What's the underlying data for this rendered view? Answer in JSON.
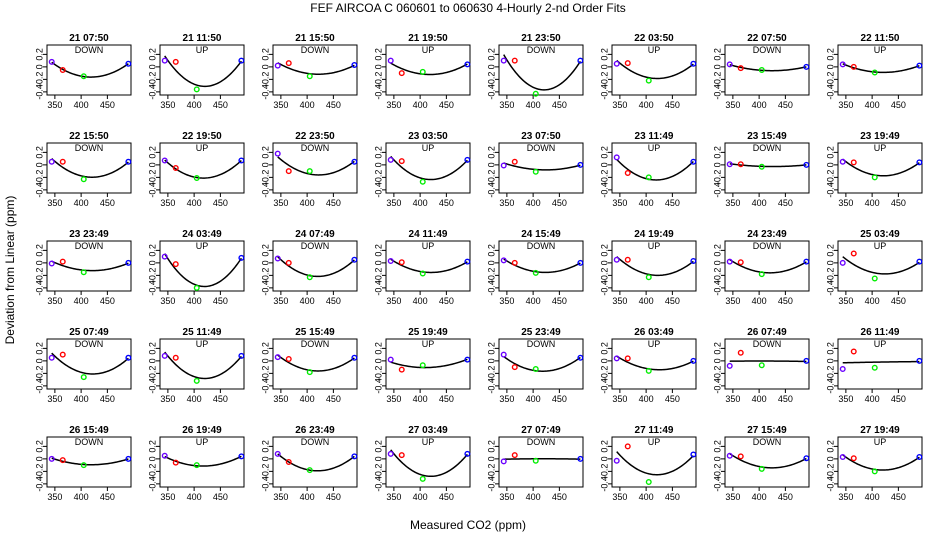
{
  "chart_data": {
    "type": "scatter",
    "title": "FEF   AIRCOA C   060601 to 060630   4-Hourly 2-nd Order Fits",
    "xlabel": "Measured CO2 (ppm)",
    "ylabel": "Deviation from Linear (ppm)",
    "xlim": [
      335,
      495
    ],
    "ylim": [
      -0.45,
      0.35
    ],
    "xticks": [
      350,
      400,
      450
    ],
    "yticks": [
      -0.4,
      -0.2,
      0.0,
      0.2
    ],
    "ytick_labels": [
      "-0.4",
      "-0.2",
      "0",
      "0.2"
    ],
    "standard_x": [
      344,
      365,
      405,
      490
    ],
    "series_colors": [
      "#6a00ff",
      "#ff0000",
      "#00ee00",
      "#0000ff"
    ],
    "panels": [
      {
        "title": "21 07:50",
        "dir": "DOWN",
        "y": [
          0.08,
          -0.05,
          -0.15,
          0.05
        ]
      },
      {
        "title": "21 11:50",
        "dir": "UP",
        "y": [
          0.1,
          0.08,
          -0.36,
          0.1
        ]
      },
      {
        "title": "21 15:50",
        "dir": "DOWN",
        "y": [
          0.02,
          0.06,
          -0.15,
          0.03
        ]
      },
      {
        "title": "21 19:50",
        "dir": "UP",
        "y": [
          0.1,
          -0.1,
          -0.08,
          0.04
        ]
      },
      {
        "title": "21 23:50",
        "dir": "DOWN",
        "y": [
          0.1,
          0.1,
          -0.43,
          0.1
        ]
      },
      {
        "title": "22 03:50",
        "dir": "UP",
        "y": [
          0.05,
          0.06,
          -0.22,
          0.05
        ]
      },
      {
        "title": "22 07:50",
        "dir": "DOWN",
        "y": [
          0.04,
          -0.02,
          -0.05,
          0.0
        ]
      },
      {
        "title": "22 11:50",
        "dir": "UP",
        "y": [
          0.04,
          0.0,
          -0.09,
          0.02
        ]
      },
      {
        "title": "22 15:50",
        "dir": "DOWN",
        "y": [
          0.05,
          0.05,
          -0.23,
          0.05
        ]
      },
      {
        "title": "22 19:50",
        "dir": "UP",
        "y": [
          0.07,
          -0.05,
          -0.21,
          0.07
        ]
      },
      {
        "title": "22 23:50",
        "dir": "DOWN",
        "y": [
          0.18,
          -0.1,
          -0.1,
          0.05
        ]
      },
      {
        "title": "23 03:50",
        "dir": "UP",
        "y": [
          0.08,
          0.06,
          -0.27,
          0.08
        ]
      },
      {
        "title": "23 07:50",
        "dir": "DOWN",
        "y": [
          -0.01,
          0.05,
          -0.11,
          0.0
        ]
      },
      {
        "title": "23 11:49",
        "dir": "UP",
        "y": [
          0.12,
          -0.13,
          -0.2,
          0.05
        ]
      },
      {
        "title": "23 15:49",
        "dir": "DOWN",
        "y": [
          0.01,
          0.01,
          -0.03,
          0.0
        ]
      },
      {
        "title": "23 19:49",
        "dir": "UP",
        "y": [
          0.05,
          0.04,
          -0.2,
          0.04
        ]
      },
      {
        "title": "23 23:49",
        "dir": "DOWN",
        "y": [
          -0.01,
          0.02,
          -0.15,
          0.0
        ]
      },
      {
        "title": "24 03:49",
        "dir": "UP",
        "y": [
          0.1,
          -0.02,
          -0.4,
          0.08
        ]
      },
      {
        "title": "24 07:49",
        "dir": "DOWN",
        "y": [
          0.07,
          0.0,
          -0.23,
          0.05
        ]
      },
      {
        "title": "24 11:49",
        "dir": "UP",
        "y": [
          0.03,
          0.01,
          -0.17,
          0.02
        ]
      },
      {
        "title": "24 15:49",
        "dir": "DOWN",
        "y": [
          0.04,
          0.0,
          -0.16,
          0.0
        ]
      },
      {
        "title": "24 19:49",
        "dir": "UP",
        "y": [
          0.05,
          0.05,
          -0.23,
          0.03
        ]
      },
      {
        "title": "24 23:49",
        "dir": "DOWN",
        "y": [
          0.02,
          0.01,
          -0.18,
          0.02
        ]
      },
      {
        "title": "25 03:49",
        "dir": "UP",
        "y": [
          0.0,
          0.15,
          -0.25,
          0.02
        ]
      },
      {
        "title": "25 07:49",
        "dir": "DOWN",
        "y": [
          0.05,
          0.1,
          -0.26,
          0.05
        ]
      },
      {
        "title": "25 11:49",
        "dir": "UP",
        "y": [
          0.08,
          0.05,
          -0.32,
          0.08
        ]
      },
      {
        "title": "25 15:49",
        "dir": "DOWN",
        "y": [
          0.06,
          0.03,
          -0.18,
          0.05
        ]
      },
      {
        "title": "25 19:49",
        "dir": "UP",
        "y": [
          0.02,
          -0.14,
          -0.07,
          0.02
        ]
      },
      {
        "title": "25 23:49",
        "dir": "DOWN",
        "y": [
          0.1,
          -0.1,
          -0.13,
          0.05
        ]
      },
      {
        "title": "26 03:49",
        "dir": "UP",
        "y": [
          0.04,
          0.04,
          -0.16,
          0.0
        ]
      },
      {
        "title": "26 07:49",
        "dir": "DOWN",
        "y": [
          -0.08,
          0.13,
          -0.07,
          0.0
        ]
      },
      {
        "title": "26 11:49",
        "dir": "UP",
        "y": [
          -0.13,
          0.15,
          -0.11,
          0.0
        ]
      },
      {
        "title": "26 15:49",
        "dir": "DOWN",
        "y": [
          0.0,
          -0.02,
          -0.1,
          0.0
        ]
      },
      {
        "title": "26 19:49",
        "dir": "UP",
        "y": [
          0.05,
          -0.06,
          -0.1,
          0.04
        ]
      },
      {
        "title": "26 23:49",
        "dir": "DOWN",
        "y": [
          0.08,
          -0.05,
          -0.18,
          0.04
        ]
      },
      {
        "title": "27 03:49",
        "dir": "UP",
        "y": [
          0.08,
          0.06,
          -0.32,
          0.08
        ]
      },
      {
        "title": "27 07:49",
        "dir": "DOWN",
        "y": [
          -0.04,
          0.06,
          -0.03,
          0.0
        ]
      },
      {
        "title": "27 11:49",
        "dir": "UP",
        "y": [
          -0.03,
          0.2,
          -0.37,
          0.07
        ]
      },
      {
        "title": "27 15:49",
        "dir": "DOWN",
        "y": [
          0.05,
          0.04,
          -0.16,
          0.01
        ]
      },
      {
        "title": "27 19:49",
        "dir": "UP",
        "y": [
          0.03,
          0.01,
          -0.2,
          0.03
        ]
      }
    ]
  }
}
